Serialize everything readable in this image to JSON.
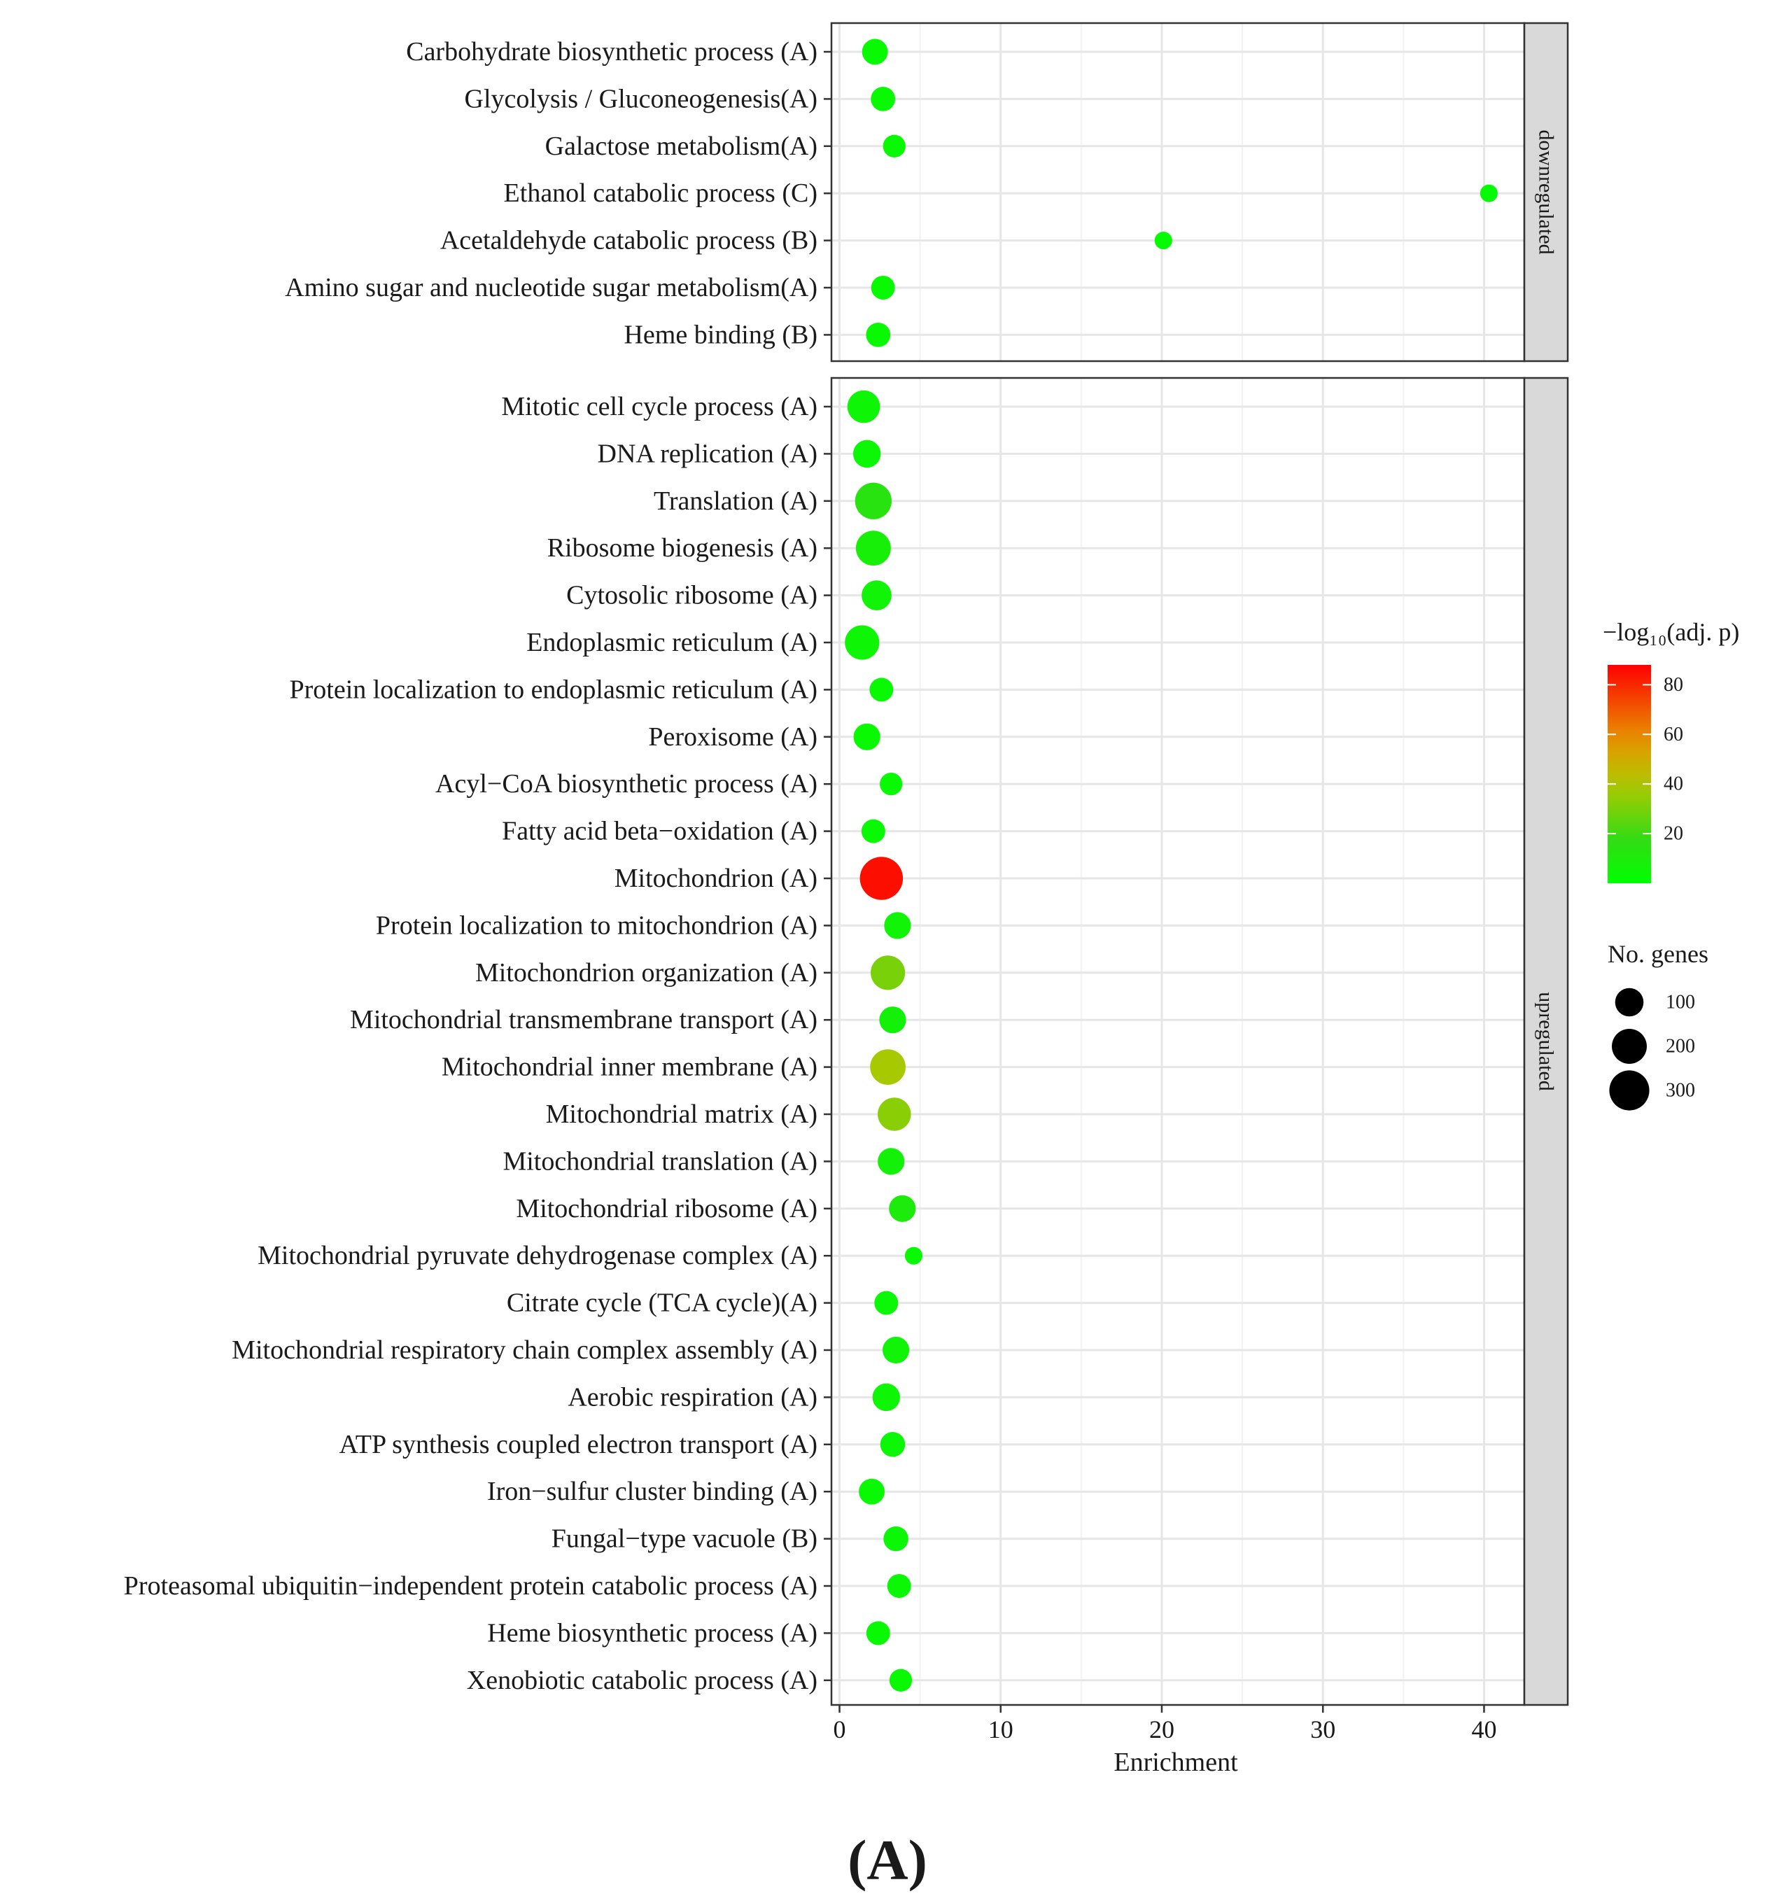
{
  "chart_data": {
    "type": "scatter",
    "xlabel": "Enrichment",
    "xlim": [
      -0.5,
      42.5
    ],
    "x_ticks": [
      0,
      10,
      20,
      30,
      40
    ],
    "grid": true,
    "caption": "(A)",
    "panels": [
      {
        "name": "downregulated",
        "points": [
          {
            "term": "Carbohydrate biosynthetic process (A)",
            "enrichment": 2.2,
            "genes": 70,
            "neglog10p": 3
          },
          {
            "term": "Glycolysis / Gluconeogenesis(A)",
            "enrichment": 2.7,
            "genes": 55,
            "neglog10p": 3
          },
          {
            "term": "Galactose metabolism(A)",
            "enrichment": 3.4,
            "genes": 40,
            "neglog10p": 3
          },
          {
            "term": "Ethanol catabolic process (C)",
            "enrichment": 40.3,
            "genes": 10,
            "neglog10p": 2
          },
          {
            "term": "Acetaldehyde catabolic process (B)",
            "enrichment": 20.1,
            "genes": 10,
            "neglog10p": 2
          },
          {
            "term": "Amino sugar and nucleotide sugar metabolism(A)",
            "enrichment": 2.7,
            "genes": 50,
            "neglog10p": 3
          },
          {
            "term": "Heme binding (B)",
            "enrichment": 2.4,
            "genes": 55,
            "neglog10p": 3
          }
        ]
      },
      {
        "name": "upregulated",
        "points": [
          {
            "term": "Mitotic cell cycle process (A)",
            "enrichment": 1.5,
            "genes": 160,
            "neglog10p": 5
          },
          {
            "term": "DNA replication (A)",
            "enrichment": 1.7,
            "genes": 90,
            "neglog10p": 4
          },
          {
            "term": "Translation (A)",
            "enrichment": 2.1,
            "genes": 230,
            "neglog10p": 14
          },
          {
            "term": "Ribosome biogenesis (A)",
            "enrichment": 2.1,
            "genes": 200,
            "neglog10p": 8
          },
          {
            "term": "Cytosolic ribosome (A)",
            "enrichment": 2.3,
            "genes": 120,
            "neglog10p": 6
          },
          {
            "term": "Endoplasmic reticulum (A)",
            "enrichment": 1.4,
            "genes": 190,
            "neglog10p": 5
          },
          {
            "term": "Protein localization to endoplasmic reticulum (A)",
            "enrichment": 2.6,
            "genes": 50,
            "neglog10p": 3
          },
          {
            "term": "Peroxisome (A)",
            "enrichment": 1.7,
            "genes": 80,
            "neglog10p": 3
          },
          {
            "term": "Acyl−CoA biosynthetic process (A)",
            "enrichment": 3.2,
            "genes": 40,
            "neglog10p": 3
          },
          {
            "term": "Fatty acid beta−oxidation (A)",
            "enrichment": 2.1,
            "genes": 50,
            "neglog10p": 3
          },
          {
            "term": "Mitochondrion (A)",
            "enrichment": 2.6,
            "genes": 370,
            "neglog10p": 85
          },
          {
            "term": "Protein localization to mitochondrion (A)",
            "enrichment": 3.6,
            "genes": 80,
            "neglog10p": 6
          },
          {
            "term": "Mitochondrion organization (A)",
            "enrichment": 3.0,
            "genes": 190,
            "neglog10p": 30
          },
          {
            "term": "Mitochondrial transmembrane transport (A)",
            "enrichment": 3.3,
            "genes": 80,
            "neglog10p": 7
          },
          {
            "term": "Mitochondrial inner membrane (A)",
            "enrichment": 3.0,
            "genes": 210,
            "neglog10p": 38
          },
          {
            "term": "Mitochondrial matrix (A)",
            "enrichment": 3.4,
            "genes": 170,
            "neglog10p": 33
          },
          {
            "term": "Mitochondrial translation (A)",
            "enrichment": 3.2,
            "genes": 80,
            "neglog10p": 7
          },
          {
            "term": "Mitochondrial ribosome (A)",
            "enrichment": 3.9,
            "genes": 80,
            "neglog10p": 10
          },
          {
            "term": "Mitochondrial pyruvate dehydrogenase complex (A)",
            "enrichment": 4.6,
            "genes": 10,
            "neglog10p": 3
          },
          {
            "term": "Citrate cycle (TCA cycle)(A)",
            "enrichment": 2.9,
            "genes": 50,
            "neglog10p": 4
          },
          {
            "term": "Mitochondrial respiratory chain complex assembly (A)",
            "enrichment": 3.5,
            "genes": 80,
            "neglog10p": 6
          },
          {
            "term": "Aerobic respiration (A)",
            "enrichment": 2.9,
            "genes": 90,
            "neglog10p": 5
          },
          {
            "term": "ATP synthesis coupled electron transport (A)",
            "enrichment": 3.3,
            "genes": 60,
            "neglog10p": 4
          },
          {
            "term": "Iron−sulfur cluster binding (A)",
            "enrichment": 2.0,
            "genes": 70,
            "neglog10p": 3
          },
          {
            "term": "Fungal−type vacuole (B)",
            "enrichment": 3.5,
            "genes": 60,
            "neglog10p": 4
          },
          {
            "term": "Proteasomal ubiquitin−independent protein catabolic process (A)",
            "enrichment": 3.7,
            "genes": 50,
            "neglog10p": 4
          },
          {
            "term": "Heme biosynthetic process (A)",
            "enrichment": 2.4,
            "genes": 50,
            "neglog10p": 3
          },
          {
            "term": "Xenobiotic catabolic process (A)",
            "enrichment": 3.8,
            "genes": 40,
            "neglog10p": 3
          }
        ]
      }
    ],
    "color_legend": {
      "title": "−log₁₀(adj. p)",
      "min": 0,
      "max": 88,
      "ticks": [
        20,
        40,
        60,
        80
      ],
      "low_color": "#00ff00",
      "high_color": "#ff0000"
    },
    "size_legend": {
      "title": "No. genes",
      "breaks": [
        100,
        200,
        300
      ]
    }
  }
}
